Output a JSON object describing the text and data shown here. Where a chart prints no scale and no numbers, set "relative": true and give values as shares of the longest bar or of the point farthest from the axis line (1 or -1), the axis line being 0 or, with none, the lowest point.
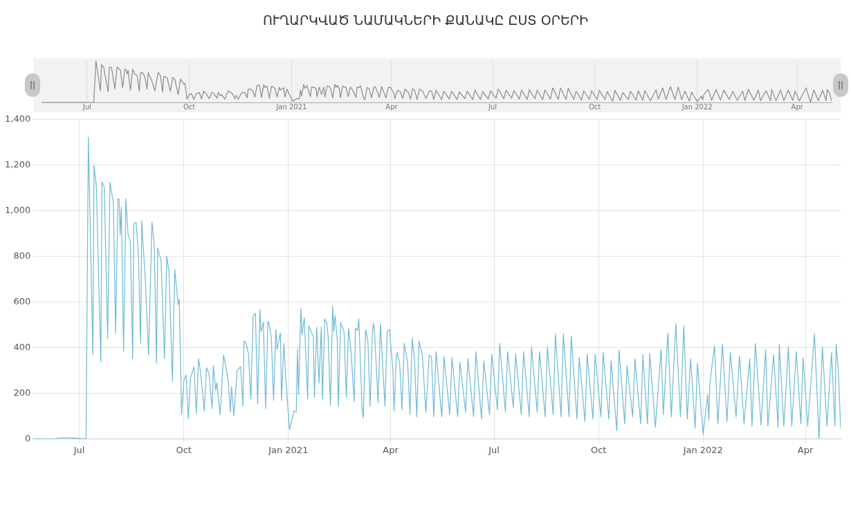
{
  "chart_data": [
    {
      "type": "line",
      "relative": true,
      "title": "ՈՒՂԱՐԿՎԱԾ ՆԱՄԱԿՆԵՐԻ ՔԱՆԱԿԸ ԸՍՏ ՕՐԵՐԻ",
      "x": [
        "2020-05-21",
        "2020-06-10",
        "2020-06-15",
        "2020-06-25",
        "2020-07-06",
        "2020-07-07",
        "2020-07-09",
        "2020-07-13",
        "2020-07-14",
        "2020-07-16",
        "2020-07-20",
        "2020-07-21",
        "2020-07-23",
        "2020-07-26",
        "2020-07-28",
        "2020-07-31",
        "2020-08-02",
        "2020-08-04",
        "2020-08-05",
        "2020-08-06",
        "2020-08-07",
        "2020-08-09",
        "2020-08-11",
        "2020-08-13",
        "2020-08-15",
        "2020-08-17",
        "2020-08-18",
        "2020-08-20",
        "2020-08-22",
        "2020-08-24",
        "2020-08-25",
        "2020-08-26",
        "2020-08-28",
        "2020-08-31",
        "2020-09-03",
        "2020-09-05",
        "2020-09-07",
        "2020-09-08",
        "2020-09-11",
        "2020-09-14",
        "2020-09-16",
        "2020-09-18",
        "2020-09-21",
        "2020-09-23",
        "2020-09-26",
        "2020-09-27",
        "2020-09-29",
        "2020-10-01",
        "2020-10-03",
        "2020-10-05",
        "2020-10-07",
        "2020-10-10",
        "2020-10-12",
        "2020-10-14",
        "2020-10-16",
        "2020-10-19",
        "2020-10-21",
        "2020-10-23",
        "2020-10-26",
        "2020-10-27",
        "2020-10-29",
        "2020-10-30",
        "2020-11-02",
        "2020-11-05",
        "2020-11-07",
        "2020-11-09",
        "2020-11-11",
        "2020-11-12",
        "2020-11-14",
        "2020-11-17",
        "2020-11-20",
        "2020-11-22",
        "2020-11-23",
        "2020-11-25",
        "2020-11-27",
        "2020-11-29",
        "2020-12-01",
        "2020-12-03",
        "2020-12-05",
        "2020-12-07",
        "2020-12-08",
        "2020-12-10",
        "2020-12-12",
        "2020-12-14",
        "2020-12-15",
        "2020-12-17",
        "2020-12-19",
        "2020-12-21",
        "2020-12-22",
        "2020-12-25",
        "2020-12-26",
        "2020-12-28",
        "2020-12-30",
        "2021-01-02",
        "2021-01-04",
        "2021-01-06",
        "2021-01-08",
        "2021-01-09",
        "2021-01-10",
        "2021-01-12",
        "2021-01-13",
        "2021-01-15",
        "2021-01-18",
        "2021-01-19",
        "2021-01-21",
        "2021-01-23",
        "2021-01-24",
        "2021-01-26",
        "2021-01-28",
        "2021-01-30",
        "2021-01-31",
        "2021-02-02",
        "2021-02-04",
        "2021-02-05",
        "2021-02-07",
        "2021-02-09",
        "2021-02-10",
        "2021-02-11",
        "2021-02-13",
        "2021-02-14",
        "2021-02-16",
        "2021-02-19",
        "2021-02-21",
        "2021-02-23",
        "2021-02-25",
        "2021-02-28",
        "2021-03-01",
        "2021-03-03",
        "2021-03-04",
        "2021-03-07",
        "2021-03-08",
        "2021-03-10",
        "2021-03-12",
        "2021-03-14",
        "2021-03-16",
        "2021-03-17",
        "2021-03-18",
        "2021-03-21",
        "2021-03-23",
        "2021-03-27",
        "2021-03-29",
        "2021-03-31",
        "2021-04-03",
        "2021-04-04",
        "2021-04-06",
        "2021-04-07",
        "2021-04-09",
        "2021-04-11",
        "2021-04-13",
        "2021-04-16",
        "2021-04-18",
        "2021-04-20",
        "2021-04-22",
        "2021-04-24",
        "2021-04-26",
        "2021-04-29",
        "2021-05-02",
        "2021-05-05",
        "2021-05-07",
        "2021-05-09",
        "2021-05-11",
        "2021-05-16",
        "2021-05-18",
        "2021-05-23",
        "2021-05-25",
        "2021-05-30",
        "2021-06-01",
        "2021-06-06",
        "2021-06-08",
        "2021-06-13",
        "2021-06-15",
        "2021-06-20",
        "2021-06-22",
        "2021-06-27",
        "2021-06-29",
        "2021-07-04",
        "2021-07-06",
        "2021-07-11",
        "2021-07-13",
        "2021-07-18",
        "2021-07-20",
        "2021-07-25",
        "2021-07-27",
        "2021-08-01",
        "2021-08-03",
        "2021-08-08",
        "2021-08-10",
        "2021-08-15",
        "2021-08-17",
        "2021-08-22",
        "2021-08-24",
        "2021-08-29",
        "2021-08-31",
        "2021-09-05",
        "2021-09-07",
        "2021-09-12",
        "2021-09-14",
        "2021-09-19",
        "2021-09-21",
        "2021-09-26",
        "2021-09-28",
        "2021-10-03",
        "2021-10-05",
        "2021-10-10",
        "2021-10-12",
        "2021-10-17",
        "2021-10-19",
        "2021-10-24",
        "2021-10-26",
        "2021-10-31",
        "2021-11-02",
        "2021-11-07",
        "2021-11-09",
        "2021-11-13",
        "2021-11-15",
        "2021-11-20",
        "2021-11-25",
        "2021-11-27",
        "2021-12-01",
        "2021-12-04",
        "2021-12-08",
        "2021-12-12",
        "2021-12-15",
        "2021-12-18",
        "2021-12-21",
        "2021-12-25",
        "2021-12-27",
        "2022-01-01",
        "2022-01-05",
        "2022-01-06",
        "2022-01-07",
        "2022-01-11",
        "2022-01-14",
        "2022-01-18",
        "2022-01-22",
        "2022-01-25",
        "2022-01-30",
        "2022-02-02",
        "2022-02-06",
        "2022-02-11",
        "2022-02-13",
        "2022-02-16",
        "2022-02-21",
        "2022-02-25",
        "2022-02-27",
        "2022-03-04",
        "2022-03-08",
        "2022-03-09",
        "2022-03-13",
        "2022-03-17",
        "2022-03-20",
        "2022-03-24",
        "2022-03-28",
        "2022-03-30",
        "2022-04-03",
        "2022-04-09",
        "2022-04-13",
        "2022-04-16",
        "2022-04-20",
        "2022-04-24",
        "2022-04-27",
        "2022-04-28",
        "2022-04-30",
        "2022-05-02"
      ],
      "series": [
        {
          "color": "#8a8a8a",
          "values": [
            0,
            0,
            0,
            0,
            0,
            0,
            1,
            0.28,
            0.91,
            0.84,
            0.25,
            0.85,
            0.84,
            0.33,
            0.85,
            0.78,
            0.35,
            0.8,
            0.8,
            0.68,
            0.77,
            0.29,
            0.8,
            0.68,
            0.65,
            0.27,
            0.71,
            0.72,
            0.61,
            0.32,
            0.72,
            0.65,
            0.54,
            0.28,
            0.72,
            0.65,
            0.25,
            0.63,
            0.59,
            0.27,
            0.6,
            0.55,
            0.19,
            0.56,
            0.44,
            0.46,
            0.08,
            0.19,
            0.21,
            0.07,
            0.2,
            0.24,
            0.08,
            0.27,
            0.21,
            0.09,
            0.24,
            0.22,
            0.1,
            0.24,
            0.16,
            0.19,
            0.08,
            0.28,
            0.24,
            0.2,
            0.09,
            0.17,
            0.08,
            0.23,
            0.24,
            0.11,
            0.32,
            0.32,
            0.28,
            0.13,
            0.41,
            0.42,
            0.12,
            0.43,
            0.36,
            0.39,
            0.1,
            0.39,
            0.38,
            0.34,
            0.13,
            0.36,
            0.3,
            0.35,
            0.13,
            0.32,
            0.19,
            0.03,
            0.06,
            0.09,
            0.09,
            0.3,
            0.15,
            0.43,
            0.34,
            0.4,
            0.13,
            0.37,
            0.36,
            0.34,
            0.14,
            0.37,
            0.19,
            0.37,
            0.13,
            0.4,
            0.38,
            0.34,
            0.11,
            0.44,
            0.36,
            0.41,
            0.33,
            0.11,
            0.39,
            0.36,
            0.14,
            0.37,
            0.3,
            0.12,
            0.37,
            0.36,
            0.4,
            0.09,
            0.07,
            0.36,
            0.32,
            0.11,
            0.36,
            0.38,
            0.34,
            0.12,
            0.38,
            0.11,
            0.36,
            0.36,
            0.23,
            0.09,
            0.28,
            0.29,
            0.25,
            0.1,
            0.32,
            0.25,
            0.08,
            0.33,
            0.27,
            0.07,
            0.32,
            0.27,
            0.09,
            0.28,
            0.27,
            0.07,
            0.29,
            0.07,
            0.27,
            0.08,
            0.27,
            0.07,
            0.25,
            0.09,
            0.27,
            0.07,
            0.29,
            0.07,
            0.26,
            0.08,
            0.28,
            0.1,
            0.32,
            0.09,
            0.29,
            0.1,
            0.28,
            0.08,
            0.29,
            0.07,
            0.3,
            0.09,
            0.29,
            0.07,
            0.3,
            0.08,
            0.35,
            0.07,
            0.35,
            0.07,
            0.34,
            0.07,
            0.27,
            0.06,
            0.28,
            0.07,
            0.28,
            0.07,
            0.29,
            0.07,
            0.26,
            0.03,
            0.29,
            0.05,
            0.24,
            0.07,
            0.27,
            0.05,
            0.28,
            0.05,
            0.28,
            0.04,
            0.3,
            0.08,
            0.35,
            0.07,
            0.38,
            0.07,
            0.37,
            0.07,
            0.27,
            0.03,
            0.25,
            0.02,
            0.15,
            0.06,
            0.19,
            0.31,
            0.05,
            0.31,
            0.06,
            0.29,
            0.07,
            0.27,
            0.05,
            0.27,
            0.04,
            0.32,
            0.05,
            0.3,
            0.04,
            0.28,
            0.04,
            0.31,
            0.04,
            0.3,
            0.04,
            0.29,
            0.05,
            0.27,
            0.04,
            0.35,
            0,
            0.3,
            0.04,
            0.29,
            0.04,
            0.31,
            0.23,
            0.03
          ]
        }
      ],
      "xlim": [
        "2020-05-21",
        "2022-05-02"
      ],
      "xticks": [
        {
          "value": "2020-07-01",
          "label": "Jul"
        },
        {
          "value": "2020-10-01",
          "label": "Oct"
        },
        {
          "value": "2021-01-01",
          "label": "Jan 2021"
        },
        {
          "value": "2021-04-01",
          "label": "Apr"
        },
        {
          "value": "2021-07-01",
          "label": "Jul"
        },
        {
          "value": "2021-10-01",
          "label": "Oct"
        },
        {
          "value": "2022-01-01",
          "label": "Jan 2022"
        },
        {
          "value": "2022-04-01",
          "label": "Apr"
        }
      ],
      "tick_labels": "x",
      "grid": "x",
      "legend": false,
      "marker": "none",
      "line_style": "solid"
    },
    {
      "type": "line",
      "x": [
        "2020-05-21",
        "2020-06-10",
        "2020-06-15",
        "2020-06-25",
        "2020-07-06",
        "2020-07-07",
        "2020-07-09",
        "2020-07-13",
        "2020-07-14",
        "2020-07-16",
        "2020-07-20",
        "2020-07-21",
        "2020-07-23",
        "2020-07-26",
        "2020-07-28",
        "2020-07-31",
        "2020-08-02",
        "2020-08-04",
        "2020-08-05",
        "2020-08-06",
        "2020-08-07",
        "2020-08-09",
        "2020-08-11",
        "2020-08-13",
        "2020-08-15",
        "2020-08-17",
        "2020-08-18",
        "2020-08-20",
        "2020-08-22",
        "2020-08-24",
        "2020-08-25",
        "2020-08-26",
        "2020-08-28",
        "2020-08-31",
        "2020-09-03",
        "2020-09-05",
        "2020-09-07",
        "2020-09-08",
        "2020-09-11",
        "2020-09-14",
        "2020-09-16",
        "2020-09-18",
        "2020-09-21",
        "2020-09-23",
        "2020-09-26",
        "2020-09-27",
        "2020-09-29",
        "2020-10-01",
        "2020-10-03",
        "2020-10-05",
        "2020-10-07",
        "2020-10-10",
        "2020-10-12",
        "2020-10-14",
        "2020-10-16",
        "2020-10-19",
        "2020-10-21",
        "2020-10-23",
        "2020-10-26",
        "2020-10-27",
        "2020-10-29",
        "2020-10-30",
        "2020-11-02",
        "2020-11-05",
        "2020-11-07",
        "2020-11-09",
        "2020-11-11",
        "2020-11-12",
        "2020-11-14",
        "2020-11-17",
        "2020-11-20",
        "2020-11-22",
        "2020-11-23",
        "2020-11-25",
        "2020-11-27",
        "2020-11-29",
        "2020-12-01",
        "2020-12-03",
        "2020-12-05",
        "2020-12-07",
        "2020-12-08",
        "2020-12-10",
        "2020-12-12",
        "2020-12-14",
        "2020-12-15",
        "2020-12-17",
        "2020-12-19",
        "2020-12-21",
        "2020-12-22",
        "2020-12-25",
        "2020-12-26",
        "2020-12-28",
        "2020-12-30",
        "2021-01-02",
        "2021-01-04",
        "2021-01-06",
        "2021-01-08",
        "2021-01-09",
        "2021-01-10",
        "2021-01-12",
        "2021-01-13",
        "2021-01-15",
        "2021-01-18",
        "2021-01-19",
        "2021-01-21",
        "2021-01-23",
        "2021-01-24",
        "2021-01-26",
        "2021-01-28",
        "2021-01-30",
        "2021-01-31",
        "2021-02-02",
        "2021-02-04",
        "2021-02-05",
        "2021-02-07",
        "2021-02-09",
        "2021-02-10",
        "2021-02-11",
        "2021-02-13",
        "2021-02-14",
        "2021-02-16",
        "2021-02-19",
        "2021-02-21",
        "2021-02-23",
        "2021-02-25",
        "2021-02-28",
        "2021-03-01",
        "2021-03-03",
        "2021-03-04",
        "2021-03-07",
        "2021-03-08",
        "2021-03-10",
        "2021-03-12",
        "2021-03-14",
        "2021-03-16",
        "2021-03-17",
        "2021-03-18",
        "2021-03-21",
        "2021-03-23",
        "2021-03-27",
        "2021-03-29",
        "2021-03-31",
        "2021-04-03",
        "2021-04-04",
        "2021-04-06",
        "2021-04-07",
        "2021-04-09",
        "2021-04-11",
        "2021-04-13",
        "2021-04-16",
        "2021-04-18",
        "2021-04-20",
        "2021-04-22",
        "2021-04-24",
        "2021-04-26",
        "2021-04-29",
        "2021-05-02",
        "2021-05-05",
        "2021-05-07",
        "2021-05-09",
        "2021-05-11",
        "2021-05-16",
        "2021-05-18",
        "2021-05-23",
        "2021-05-25",
        "2021-05-30",
        "2021-06-01",
        "2021-06-06",
        "2021-06-08",
        "2021-06-13",
        "2021-06-15",
        "2021-06-20",
        "2021-06-22",
        "2021-06-27",
        "2021-06-29",
        "2021-07-04",
        "2021-07-06",
        "2021-07-11",
        "2021-07-13",
        "2021-07-18",
        "2021-07-20",
        "2021-07-25",
        "2021-07-27",
        "2021-08-01",
        "2021-08-03",
        "2021-08-08",
        "2021-08-10",
        "2021-08-15",
        "2021-08-17",
        "2021-08-22",
        "2021-08-24",
        "2021-08-29",
        "2021-08-31",
        "2021-09-05",
        "2021-09-07",
        "2021-09-12",
        "2021-09-14",
        "2021-09-19",
        "2021-09-21",
        "2021-09-26",
        "2021-09-28",
        "2021-10-03",
        "2021-10-05",
        "2021-10-10",
        "2021-10-12",
        "2021-10-17",
        "2021-10-19",
        "2021-10-24",
        "2021-10-26",
        "2021-10-31",
        "2021-11-02",
        "2021-11-07",
        "2021-11-09",
        "2021-11-13",
        "2021-11-15",
        "2021-11-20",
        "2021-11-25",
        "2021-11-27",
        "2021-12-01",
        "2021-12-04",
        "2021-12-08",
        "2021-12-12",
        "2021-12-15",
        "2021-12-18",
        "2021-12-21",
        "2021-12-25",
        "2021-12-27",
        "2022-01-01",
        "2022-01-05",
        "2022-01-06",
        "2022-01-07",
        "2022-01-11",
        "2022-01-14",
        "2022-01-18",
        "2022-01-22",
        "2022-01-25",
        "2022-01-30",
        "2022-02-02",
        "2022-02-06",
        "2022-02-11",
        "2022-02-13",
        "2022-02-16",
        "2022-02-21",
        "2022-02-25",
        "2022-02-27",
        "2022-03-04",
        "2022-03-08",
        "2022-03-09",
        "2022-03-13",
        "2022-03-17",
        "2022-03-20",
        "2022-03-24",
        "2022-03-28",
        "2022-03-30",
        "2022-04-03",
        "2022-04-09",
        "2022-04-13",
        "2022-04-16",
        "2022-04-20",
        "2022-04-24",
        "2022-04-27",
        "2022-04-28",
        "2022-04-30",
        "2022-05-02"
      ],
      "series": [
        {
          "color": "#6cb9d6",
          "values": [
            0,
            0,
            5,
            4,
            0,
            0,
            1323,
            368,
            1200,
            1108,
            337,
            1125,
            1105,
            439,
            1125,
            1036,
            465,
            1052,
            1052,
            894,
            1016,
            383,
            1052,
            894,
            864,
            352,
            945,
            950,
            812,
            419,
            957,
            864,
            711,
            368,
            950,
            854,
            332,
            837,
            781,
            352,
            800,
            730,
            255,
            745,
            588,
            613,
            107,
            255,
            280,
            87,
            270,
            316,
            112,
            352,
            280,
            122,
            311,
            290,
            133,
            321,
            213,
            245,
            107,
            368,
            316,
            260,
            118,
            230,
            102,
            301,
            316,
            143,
            429,
            419,
            368,
            174,
            536,
            551,
            153,
            567,
            470,
            511,
            133,
            516,
            505,
            444,
            169,
            480,
            393,
            465,
            169,
            419,
            245,
            41,
            82,
            122,
            117,
            393,
            194,
            572,
            455,
            531,
            174,
            496,
            470,
            450,
            184,
            490,
            245,
            490,
            174,
            526,
            505,
            450,
            148,
            582,
            470,
            541,
            439,
            143,
            511,
            470,
            184,
            485,
            393,
            163,
            485,
            475,
            526,
            122,
            92,
            480,
            429,
            143,
            475,
            506,
            455,
            158,
            506,
            143,
            470,
            480,
            301,
            122,
            368,
            378,
            327,
            128,
            419,
            332,
            107,
            439,
            352,
            97,
            429,
            363,
            117,
            368,
            357,
            97,
            383,
            97,
            362,
            107,
            357,
            97,
            337,
            117,
            352,
            97,
            383,
            87,
            342,
            107,
            372,
            128,
            419,
            117,
            383,
            138,
            372,
            107,
            383,
            97,
            403,
            117,
            383,
            97,
            403,
            107,
            460,
            97,
            460,
            97,
            450,
            87,
            357,
            76,
            372,
            87,
            372,
            97,
            378,
            87,
            342,
            36,
            388,
            66,
            321,
            97,
            352,
            66,
            368,
            66,
            373,
            51,
            393,
            107,
            465,
            97,
            506,
            97,
            496,
            87,
            352,
            46,
            332,
            20,
            194,
            82,
            245,
            408,
            66,
            414,
            76,
            378,
            97,
            362,
            66,
            352,
            56,
            419,
            61,
            393,
            56,
            368,
            51,
            414,
            56,
            403,
            56,
            383,
            66,
            357,
            56,
            460,
            0,
            403,
            56,
            378,
            56,
            414,
            301,
            46
          ]
        }
      ],
      "xlim": [
        "2020-05-21",
        "2022-05-02"
      ],
      "xticks": [
        {
          "value": "2020-07-01",
          "label": "Jul"
        },
        {
          "value": "2020-10-01",
          "label": "Oct"
        },
        {
          "value": "2021-01-01",
          "label": "Jan 2021"
        },
        {
          "value": "2021-04-01",
          "label": "Apr"
        },
        {
          "value": "2021-07-01",
          "label": "Jul"
        },
        {
          "value": "2021-10-01",
          "label": "Oct"
        },
        {
          "value": "2022-01-01",
          "label": "Jan 2022"
        },
        {
          "value": "2022-04-01",
          "label": "Apr"
        }
      ],
      "ylim": [
        0,
        1400
      ],
      "yticks": [
        0,
        200,
        400,
        600,
        800,
        {
          "value": 1000,
          "label": "1,000"
        },
        {
          "value": 1200,
          "label": "1,200"
        },
        {
          "value": 1400,
          "label": "1,400"
        }
      ],
      "grid": true,
      "legend": false,
      "marker": "none",
      "line_style": "solid"
    }
  ]
}
